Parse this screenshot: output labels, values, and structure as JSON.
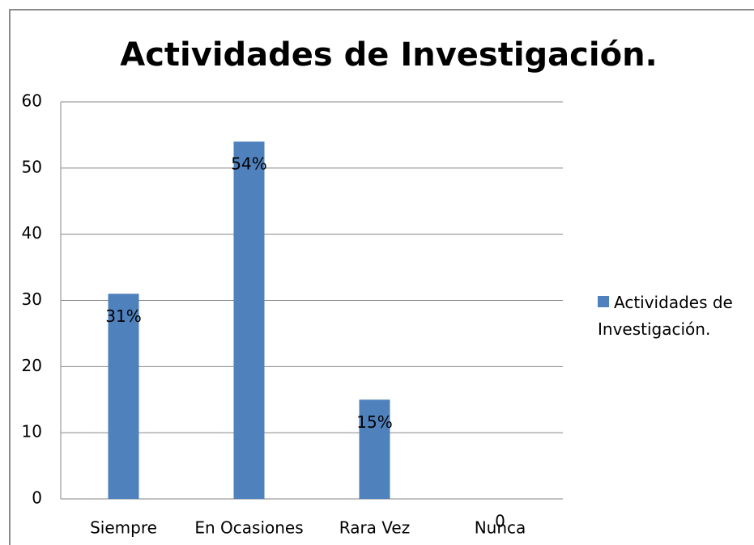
{
  "chart_data": {
    "type": "bar",
    "title": "Actividades de Investigación.",
    "categories": [
      "Siempre",
      "En Ocasiones",
      "Rara Vez",
      "Nunca"
    ],
    "series": [
      {
        "name": "Actividades de Investigación.",
        "color": "#4f81bd",
        "values": [
          31,
          54,
          15,
          0
        ],
        "value_labels": [
          "31%",
          "54%",
          "15%",
          "0"
        ]
      }
    ],
    "ylim": [
      0,
      60
    ],
    "yticks": [
      0,
      10,
      20,
      30,
      40,
      50,
      60
    ],
    "grid": true,
    "legend": "right"
  }
}
